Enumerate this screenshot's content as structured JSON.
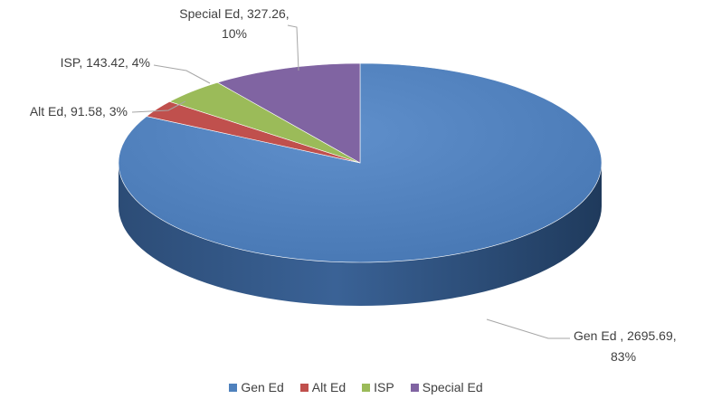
{
  "chart_data": {
    "type": "pie",
    "categories": [
      "Gen Ed",
      "Alt Ed",
      "ISP",
      "Special Ed"
    ],
    "values": [
      2695.69,
      91.58,
      143.42,
      327.26
    ],
    "percents": [
      "83%",
      "3%",
      "4%",
      "10%"
    ],
    "colors": [
      "#4f81bd",
      "#c0504d",
      "#9bbb59",
      "#8064a2"
    ],
    "labels": [
      [
        "Gen Ed , 2695.69,",
        "83%"
      ],
      [
        "Alt Ed, 91.58, 3%"
      ],
      [
        "ISP, 143.42, 4%"
      ],
      [
        "Special Ed, 327.26,",
        "10%"
      ]
    ],
    "legend": [
      {
        "name": "Gen Ed",
        "color": "#4f81bd"
      },
      {
        "name": "Alt Ed",
        "color": "#c0504d"
      },
      {
        "name": "ISP",
        "color": "#9bbb59"
      },
      {
        "name": "Special Ed",
        "color": "#8064a2"
      }
    ],
    "style": "3d",
    "legend_position": "bottom"
  }
}
